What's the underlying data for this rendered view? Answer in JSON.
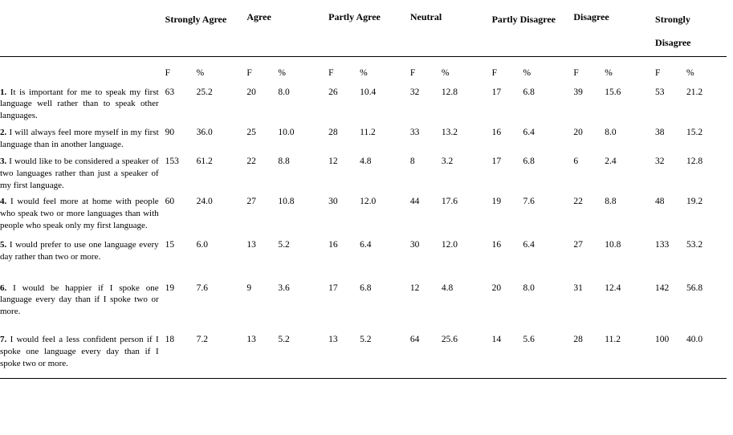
{
  "colors": {
    "background": "#ffffff",
    "text": "#000000",
    "rule": "#000000"
  },
  "typography": {
    "body_font": "Times New Roman",
    "header_fontsize_pt": 12,
    "cell_fontsize_pt": 11.5,
    "statement_fontsize_pt": 11
  },
  "headers": {
    "strongly_agree": "Strongly Agree",
    "agree": "Agree",
    "partly_agree": "Partly Agree",
    "neutral": "Neutral",
    "partly_disagree": "Partly Disagree",
    "disagree": "Disagree",
    "strongly_disagree": "Strongly Disagree"
  },
  "subheaders": {
    "f": "F",
    "p": "%"
  },
  "rows": [
    {
      "num": "1.",
      "text": " It is important for me to speak my first language well rather than to speak other languages.",
      "sa_f": "63",
      "sa_p": "25.2",
      "a_f": "20",
      "a_p": "8.0",
      "pa_f": "26",
      "pa_p": "10.4",
      "n_f": "32",
      "n_p": "12.8",
      "pd_f": "17",
      "pd_p": "6.8",
      "d_f": "39",
      "d_p": "15.6",
      "sd_f": "53",
      "sd_p": "21.2"
    },
    {
      "num": "2.",
      "text": " I will always feel more myself in my first language than in another language.",
      "sa_f": "90",
      "sa_p": "36.0",
      "a_f": "25",
      "a_p": "10.0",
      "pa_f": "28",
      "pa_p": "11.2",
      "n_f": "33",
      "n_p": "13.2",
      "pd_f": "16",
      "pd_p": "6.4",
      "d_f": "20",
      "d_p": "8.0",
      "sd_f": "38",
      "sd_p": "15.2"
    },
    {
      "num": "3.",
      "text": " I would like to be considered a speaker of two languages rather than just a speaker of my first language.",
      "sa_f": "153",
      "sa_p": "61.2",
      "a_f": "22",
      "a_p": "8.8",
      "pa_f": "12",
      "pa_p": "4.8",
      "n_f": "8",
      "n_p": "3.2",
      "pd_f": "17",
      "pd_p": "6.8",
      "d_f": "6",
      "d_p": "2.4",
      "sd_f": "32",
      "sd_p": "12.8"
    },
    {
      "num": "4.",
      "text": " I would feel more at home with people who speak two or more languages than with people who speak only my first language.",
      "sa_f": "60",
      "sa_p": "24.0",
      "a_f": "27",
      "a_p": "10.8",
      "pa_f": "30",
      "pa_p": "12.0",
      "n_f": "44",
      "n_p": "17.6",
      "pd_f": "19",
      "pd_p": "7.6",
      "d_f": "22",
      "d_p": "8.8",
      "sd_f": "48",
      "sd_p": "19.2"
    },
    {
      "num": "5.",
      "text": " I would prefer to use one language every day rather than two or more.",
      "sa_f": "15",
      "sa_p": "6.0",
      "a_f": "13",
      "a_p": "5.2",
      "pa_f": "16",
      "pa_p": "6.4",
      "n_f": "30",
      "n_p": "12.0",
      "pd_f": "16",
      "pd_p": "6.4",
      "d_f": "27",
      "d_p": "10.8",
      "sd_f": "133",
      "sd_p": "53.2"
    },
    {
      "num": "6.",
      "text": " I would be happier if I spoke one language every day than if I spoke two or more.",
      "sa_f": "19",
      "sa_p": "7.6",
      "a_f": "9",
      "a_p": "3.6",
      "pa_f": "17",
      "pa_p": "6.8",
      "n_f": "12",
      "n_p": "4.8",
      "pd_f": "20",
      "pd_p": "8.0",
      "d_f": "31",
      "d_p": "12.4",
      "sd_f": "142",
      "sd_p": "56.8"
    },
    {
      "num": "7.",
      "text": " I would feel a less confident person if I spoke one language every day than if I spoke two or more.",
      "sa_f": "18",
      "sa_p": "7.2",
      "a_f": "13",
      "a_p": "5.2",
      "pa_f": "13",
      "pa_p": "5.2",
      "n_f": "64",
      "n_p": "25.6",
      "pd_f": "14",
      "pd_p": "5.6",
      "d_f": "28",
      "d_p": "11.2",
      "sd_f": "100",
      "sd_p": "40.0"
    }
  ]
}
